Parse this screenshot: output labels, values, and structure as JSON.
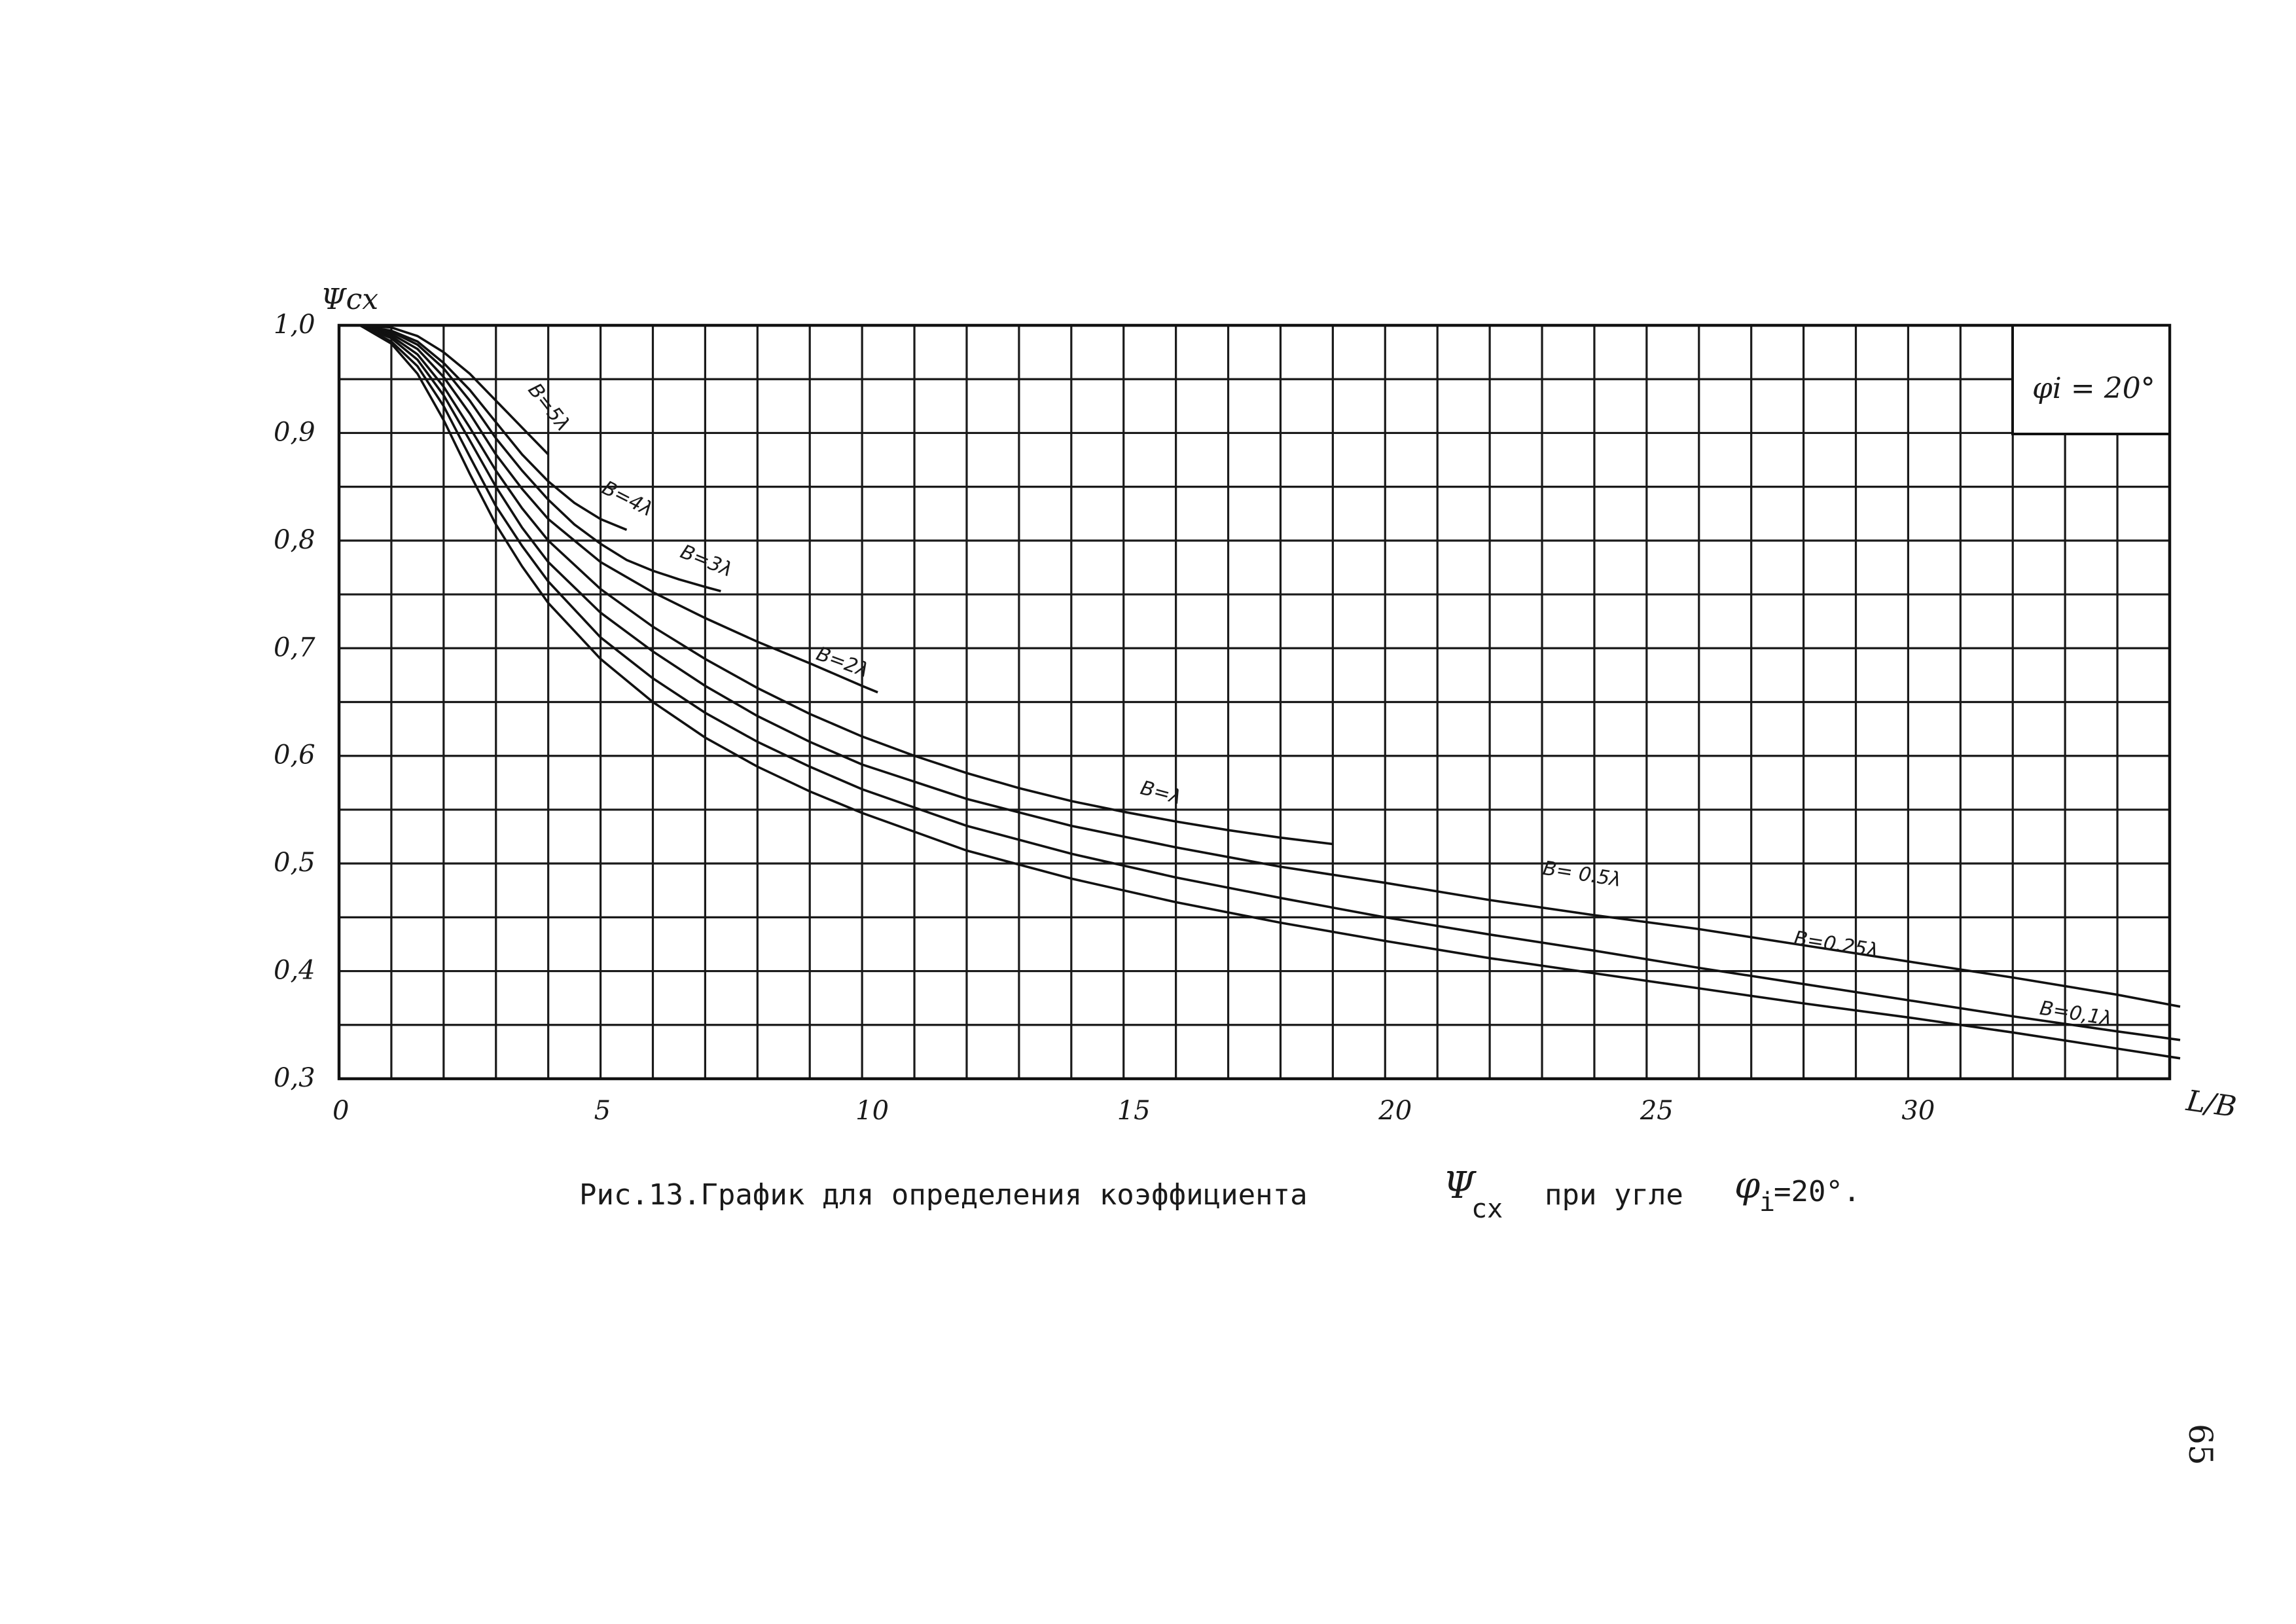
{
  "chart_data": {
    "type": "line",
    "ylabel": "Ψсх",
    "xlabel": "L/B",
    "xlim": [
      0,
      35
    ],
    "ylim": [
      0.3,
      1.0
    ],
    "x_ticks": [
      {
        "value": 0,
        "label": "0"
      },
      {
        "value": 5,
        "label": "5"
      },
      {
        "value": 10,
        "label": "10"
      },
      {
        "value": 15,
        "label": "15"
      },
      {
        "value": 20,
        "label": "20"
      },
      {
        "value": 25,
        "label": "25"
      },
      {
        "value": 30,
        "label": "30"
      }
    ],
    "y_ticks": [
      {
        "value": 1.0,
        "label": "1,0"
      },
      {
        "value": 0.9,
        "label": "0,9"
      },
      {
        "value": 0.8,
        "label": "0,8"
      },
      {
        "value": 0.7,
        "label": "0,7"
      },
      {
        "value": 0.6,
        "label": "0,6"
      },
      {
        "value": 0.5,
        "label": "0,5"
      },
      {
        "value": 0.4,
        "label": "0,4"
      },
      {
        "value": 0.3,
        "label": "0,3"
      }
    ],
    "grid": true,
    "grid_x_step": 1,
    "grid_y_step": 0.05,
    "legend_box": "φi = 20°",
    "series": [
      {
        "name": "B=5λ",
        "label_at": [
          3.6,
          0.94
        ],
        "label_rot": 52,
        "points": [
          [
            0.4,
            1.0
          ],
          [
            1,
            0.998
          ],
          [
            1.5,
            0.99
          ],
          [
            2,
            0.975
          ],
          [
            2.5,
            0.955
          ],
          [
            3,
            0.93
          ],
          [
            3.5,
            0.905
          ],
          [
            4,
            0.88
          ]
        ]
      },
      {
        "name": "B=4λ",
        "label_at": [
          5.0,
          0.845
        ],
        "label_rot": 27,
        "points": [
          [
            0.4,
            1.0
          ],
          [
            1,
            0.995
          ],
          [
            1.5,
            0.985
          ],
          [
            2,
            0.965
          ],
          [
            2.5,
            0.94
          ],
          [
            3,
            0.91
          ],
          [
            3.5,
            0.88
          ],
          [
            4,
            0.855
          ],
          [
            4.5,
            0.835
          ],
          [
            5,
            0.82
          ],
          [
            5.5,
            0.81
          ]
        ]
      },
      {
        "name": "B=3λ",
        "label_at": [
          6.5,
          0.785
        ],
        "label_rot": 22,
        "points": [
          [
            0.4,
            1.0
          ],
          [
            1,
            0.994
          ],
          [
            1.5,
            0.982
          ],
          [
            2,
            0.96
          ],
          [
            2.5,
            0.93
          ],
          [
            3,
            0.895
          ],
          [
            3.5,
            0.865
          ],
          [
            4,
            0.838
          ],
          [
            4.5,
            0.815
          ],
          [
            5,
            0.797
          ],
          [
            5.5,
            0.782
          ],
          [
            6,
            0.772
          ],
          [
            6.5,
            0.764
          ],
          [
            7,
            0.757
          ],
          [
            7.3,
            0.753
          ]
        ]
      },
      {
        "name": "B=2λ",
        "label_at": [
          9.1,
          0.69
        ],
        "label_rot": 20,
        "points": [
          [
            0.4,
            1.0
          ],
          [
            1,
            0.992
          ],
          [
            1.5,
            0.978
          ],
          [
            2,
            0.952
          ],
          [
            2.5,
            0.918
          ],
          [
            3,
            0.88
          ],
          [
            3.5,
            0.848
          ],
          [
            4,
            0.82
          ],
          [
            5,
            0.78
          ],
          [
            6,
            0.752
          ],
          [
            7,
            0.728
          ],
          [
            8,
            0.706
          ],
          [
            9,
            0.686
          ],
          [
            10,
            0.665
          ],
          [
            10.3,
            0.659
          ]
        ]
      },
      {
        "name": "B=λ",
        "label_at": [
          15.3,
          0.565
        ],
        "label_rot": 15,
        "points": [
          [
            0.4,
            1.0
          ],
          [
            1,
            0.99
          ],
          [
            1.5,
            0.973
          ],
          [
            2,
            0.943
          ],
          [
            2.5,
            0.905
          ],
          [
            3,
            0.865
          ],
          [
            3.5,
            0.83
          ],
          [
            4,
            0.8
          ],
          [
            5,
            0.755
          ],
          [
            6,
            0.72
          ],
          [
            7,
            0.69
          ],
          [
            8,
            0.663
          ],
          [
            9,
            0.639
          ],
          [
            10,
            0.618
          ],
          [
            11,
            0.6
          ],
          [
            12,
            0.584
          ],
          [
            13,
            0.57
          ],
          [
            14,
            0.558
          ],
          [
            15,
            0.548
          ],
          [
            16,
            0.539
          ],
          [
            17,
            0.531
          ],
          [
            18,
            0.524
          ],
          [
            19,
            0.518
          ]
        ]
      },
      {
        "name": "B= 0.5λ",
        "label_at": [
          23.0,
          0.49
        ],
        "label_rot": 9,
        "points": [
          [
            0.4,
            1.0
          ],
          [
            1,
            0.988
          ],
          [
            1.5,
            0.968
          ],
          [
            2,
            0.935
          ],
          [
            2.5,
            0.893
          ],
          [
            3,
            0.85
          ],
          [
            3.5,
            0.812
          ],
          [
            4,
            0.78
          ],
          [
            5,
            0.733
          ],
          [
            6,
            0.697
          ],
          [
            7,
            0.665
          ],
          [
            8,
            0.637
          ],
          [
            9,
            0.613
          ],
          [
            10,
            0.592
          ],
          [
            12,
            0.56
          ],
          [
            14,
            0.535
          ],
          [
            16,
            0.515
          ],
          [
            18,
            0.497
          ],
          [
            20,
            0.482
          ],
          [
            22,
            0.466
          ],
          [
            24,
            0.452
          ],
          [
            26,
            0.439
          ],
          [
            28,
            0.424
          ],
          [
            30,
            0.409
          ],
          [
            32,
            0.394
          ],
          [
            34,
            0.378
          ],
          [
            35.2,
            0.367
          ]
        ]
      },
      {
        "name": "B=0.25λ",
        "label_at": [
          27.8,
          0.425
        ],
        "label_rot": 9,
        "points": [
          [
            0.4,
            1.0
          ],
          [
            1,
            0.985
          ],
          [
            1.5,
            0.962
          ],
          [
            2,
            0.925
          ],
          [
            2.5,
            0.878
          ],
          [
            3,
            0.832
          ],
          [
            3.5,
            0.795
          ],
          [
            4,
            0.762
          ],
          [
            5,
            0.71
          ],
          [
            6,
            0.672
          ],
          [
            7,
            0.64
          ],
          [
            8,
            0.613
          ],
          [
            9,
            0.59
          ],
          [
            10,
            0.569
          ],
          [
            12,
            0.535
          ],
          [
            14,
            0.509
          ],
          [
            16,
            0.487
          ],
          [
            18,
            0.468
          ],
          [
            20,
            0.45
          ],
          [
            22,
            0.434
          ],
          [
            24,
            0.419
          ],
          [
            26,
            0.403
          ],
          [
            28,
            0.388
          ],
          [
            30,
            0.373
          ],
          [
            32,
            0.358
          ],
          [
            34,
            0.344
          ],
          [
            35.2,
            0.336
          ]
        ]
      },
      {
        "name": "B=0,1λ",
        "label_at": [
          32.5,
          0.36
        ],
        "label_rot": 9,
        "points": [
          [
            0.4,
            1.0
          ],
          [
            1,
            0.983
          ],
          [
            1.5,
            0.955
          ],
          [
            2,
            0.912
          ],
          [
            2.5,
            0.862
          ],
          [
            3,
            0.815
          ],
          [
            3.5,
            0.776
          ],
          [
            4,
            0.742
          ],
          [
            5,
            0.69
          ],
          [
            6,
            0.65
          ],
          [
            7,
            0.617
          ],
          [
            8,
            0.59
          ],
          [
            9,
            0.567
          ],
          [
            10,
            0.547
          ],
          [
            12,
            0.512
          ],
          [
            14,
            0.486
          ],
          [
            16,
            0.464
          ],
          [
            18,
            0.445
          ],
          [
            20,
            0.428
          ],
          [
            22,
            0.412
          ],
          [
            24,
            0.398
          ],
          [
            26,
            0.384
          ],
          [
            28,
            0.37
          ],
          [
            30,
            0.357
          ],
          [
            32,
            0.343
          ],
          [
            34,
            0.328
          ],
          [
            35.2,
            0.319
          ]
        ]
      }
    ]
  },
  "caption": {
    "prefix": "Рис.13.График для определения коэффициента",
    "psi_symbol": "Ψ",
    "psi_sub": "сх",
    "middle": "при угле",
    "phi_symbol": "φ",
    "phi_sub": "i",
    "suffix": "=20°."
  },
  "page_number": "65"
}
